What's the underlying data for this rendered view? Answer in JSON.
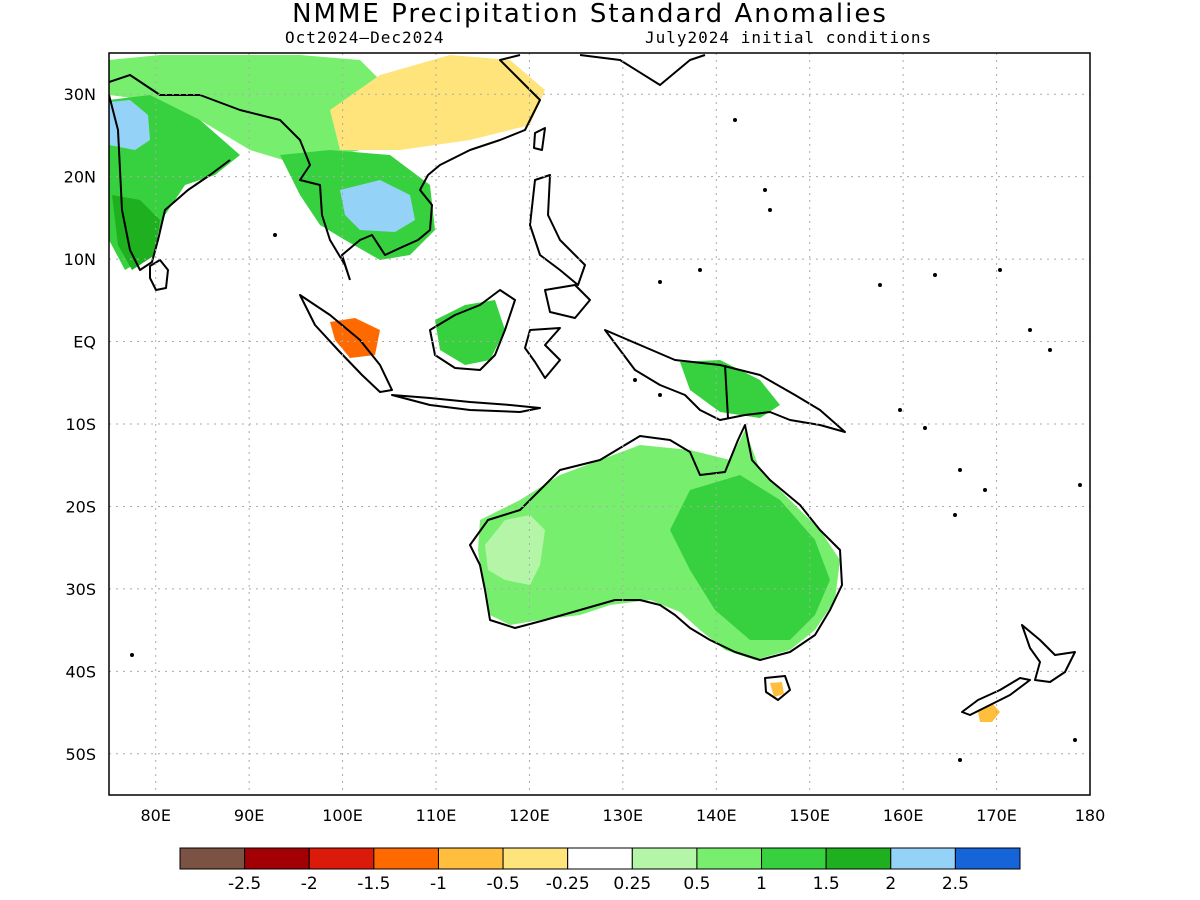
{
  "title": "NMME Precipitation Standard Anomalies",
  "subtitle_left": "Oct2024–Dec2024",
  "subtitle_right": "July2024 initial conditions",
  "axes": {
    "lon_labels": [
      "80E",
      "90E",
      "100E",
      "110E",
      "120E",
      "130E",
      "140E",
      "150E",
      "160E",
      "170E",
      "180"
    ],
    "lat_labels": [
      "30N",
      "20N",
      "10N",
      "EQ",
      "10S",
      "20S",
      "30S",
      "40S",
      "50S"
    ],
    "lon_range": [
      75,
      180
    ],
    "lat_range": [
      -55,
      35
    ],
    "grid": "dotted"
  },
  "colorbar": {
    "colors": [
      "#7b5244",
      "#a30005",
      "#dc1a0a",
      "#ff6a00",
      "#ffbf3c",
      "#ffe47c",
      "#ffffff",
      "#b5f5a8",
      "#78ee6e",
      "#37d13f",
      "#1eb01e",
      "#95d2f7",
      "#1565d9"
    ],
    "labels": [
      "-2.5",
      "-2",
      "-1.5",
      "-1",
      "-0.5",
      "-0.25",
      "0.25",
      "0.5",
      "1",
      "1.5",
      "2",
      "2.5"
    ]
  },
  "regions": [
    {
      "name": "india-north-wet",
      "color": "#37d13f"
    },
    {
      "name": "india-west-very-wet",
      "color": "#95d2f7"
    },
    {
      "name": "india-south-wet",
      "color": "#1eb01e"
    },
    {
      "name": "tibet-wet",
      "color": "#78ee6e"
    },
    {
      "name": "south-china-dry",
      "color": "#ffe47c"
    },
    {
      "name": "indochina-wet",
      "color": "#37d13f"
    },
    {
      "name": "thailand-very-wet",
      "color": "#95d2f7"
    },
    {
      "name": "sumatra-dry",
      "color": "#ff6a00"
    },
    {
      "name": "borneo-wet",
      "color": "#37d13f"
    },
    {
      "name": "new-guinea-wet",
      "color": "#37d13f"
    },
    {
      "name": "australia-wet",
      "color": "#78ee6e"
    },
    {
      "name": "west-australia-slightly-wet",
      "color": "#b5f5a8"
    },
    {
      "name": "australia-east-wet",
      "color": "#37d13f"
    },
    {
      "name": "tasmania-dry",
      "color": "#ffbf3c"
    },
    {
      "name": "new-zealand-south-dry",
      "color": "#ffbf3c"
    }
  ]
}
